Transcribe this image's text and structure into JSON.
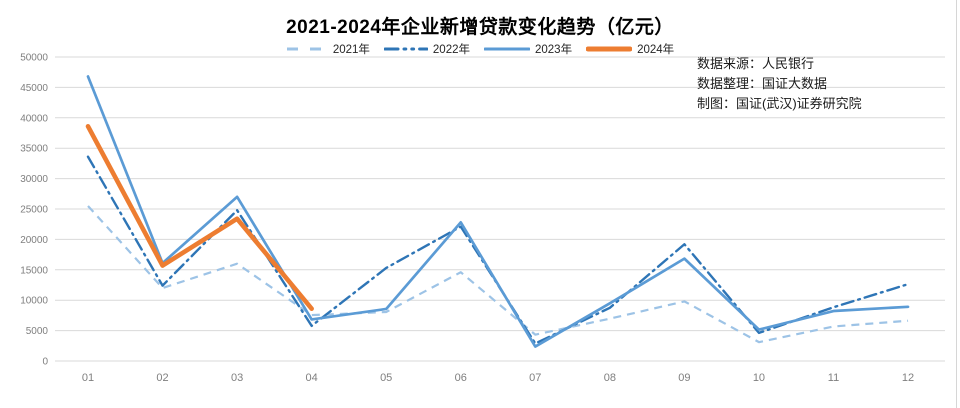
{
  "title": "2021-2024年企业新增贷款变化趋势（亿元）",
  "source_block": {
    "line1": "数据来源：人民银行",
    "line2": "数据整理：国证大数据",
    "line3": "制图：国证(武汉)证券研究院"
  },
  "chart_data": {
    "type": "line",
    "title": "2021-2024年企业新增贷款变化趋势（亿元）",
    "xlabel": "",
    "ylabel": "",
    "categories": [
      "01",
      "02",
      "03",
      "04",
      "05",
      "06",
      "07",
      "08",
      "09",
      "10",
      "11",
      "12"
    ],
    "series": [
      {
        "name": "2021年",
        "color": "#9dc3e6",
        "style": "dashed",
        "values": [
          25500,
          12000,
          16000,
          7552,
          8057,
          14600,
          4334,
          6963,
          9803,
          3101,
          5679,
          6620
        ]
      },
      {
        "name": "2022年",
        "color": "#2e75b6",
        "style": "dash-dot",
        "values": [
          33600,
          12400,
          24800,
          5784,
          15300,
          22100,
          2877,
          8750,
          19200,
          4626,
          8837,
          12637
        ]
      },
      {
        "name": "2023年",
        "color": "#5b9bd5",
        "style": "solid",
        "values": [
          46800,
          16100,
          27000,
          6839,
          8558,
          22803,
          2378,
          9488,
          16834,
          5163,
          8221,
          8916
        ]
      },
      {
        "name": "2024年",
        "color": "#ed7d31",
        "style": "solid-thick",
        "values": [
          38600,
          15700,
          23400,
          8600
        ]
      }
    ],
    "ylim": [
      0,
      50000
    ],
    "ytick_step": 5000,
    "grid": "horizontal",
    "legend_position": "top",
    "axis_text_color": "#7f7f7f",
    "grid_color": "#d9d9d9"
  }
}
